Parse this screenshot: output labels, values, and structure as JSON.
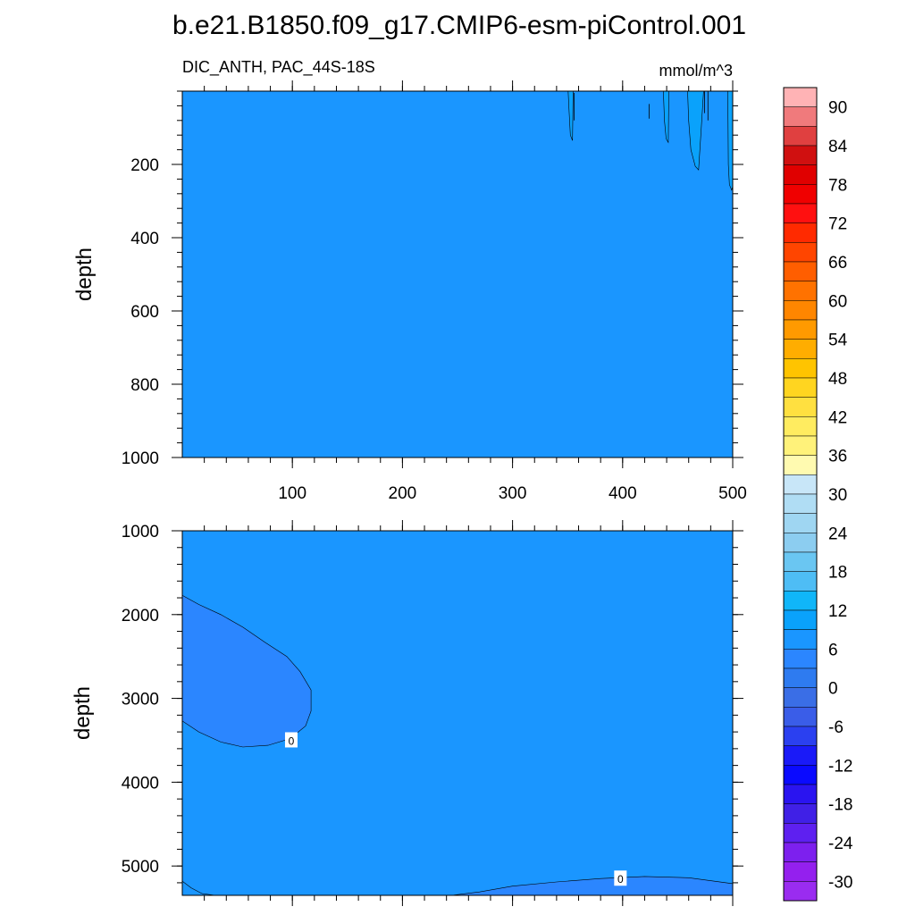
{
  "figure": {
    "title": "b.e21.B1850.f09_g17.CMIP6-esm-piControl.001",
    "variable_label": "DIC_ANTH, PAC_44S-18S",
    "units_label": "mmol/m^3"
  },
  "colors": {
    "background_fill": "#1a96ff",
    "negative_fill": "#2b86ff",
    "positive_fill": "#0aa2fb",
    "contour_line": "#000000"
  },
  "chart_data": [
    {
      "type": "heatmap",
      "panel": "upper",
      "title": "DIC_ANTH, PAC_44S-18S",
      "xlabel": "",
      "ylabel": "depth",
      "xlim": [
        0,
        500
      ],
      "ylim": [
        1000,
        0
      ],
      "y_inverted": true,
      "xticks": [
        100,
        200,
        300,
        400,
        500
      ],
      "yticks": [
        200,
        400,
        600,
        800,
        1000
      ],
      "ytick_labels": [
        "200",
        "400",
        "600",
        "800",
        "1000"
      ],
      "xtick_labels": [
        "100",
        "200",
        "300",
        "400",
        "500"
      ],
      "background_value_range": [
        0,
        3
      ],
      "features": [
        {
          "description": "thin positive plumes near surface",
          "x": [
            350,
            355
          ],
          "depth": [
            0,
            140
          ]
        },
        {
          "description": "thin positive plume",
          "x": [
            437,
            442
          ],
          "depth": [
            0,
            140
          ]
        },
        {
          "description": "positive plume",
          "x": [
            460,
            474
          ],
          "depth": [
            0,
            215
          ]
        },
        {
          "description": "positive region at right edge",
          "x": [
            495,
            500
          ],
          "depth": [
            0,
            270
          ],
          "value_range": [
            3,
            6
          ]
        }
      ]
    },
    {
      "type": "heatmap",
      "panel": "lower",
      "title": "",
      "xlabel": "",
      "ylabel": "depth",
      "xlim": [
        0,
        500
      ],
      "ylim": [
        5350,
        1000
      ],
      "y_inverted": true,
      "xticks": [
        100,
        200,
        300,
        400,
        500
      ],
      "yticks": [
        1000,
        2000,
        3000,
        4000,
        5000
      ],
      "ytick_labels": [
        "1000",
        "2000",
        "3000",
        "4000",
        "5000"
      ],
      "background_value_range": [
        0,
        3
      ],
      "contour_labels": [
        "0",
        "0"
      ],
      "features": [
        {
          "description": "negative lobe (0 contour) west side",
          "x": [
            0,
            118
          ],
          "depth": [
            1770,
            3580
          ],
          "value_range": [
            -3,
            0
          ]
        },
        {
          "description": "negative region near bottom (0 contour)",
          "x": [
            245,
            500
          ],
          "depth": [
            5120,
            5350
          ],
          "value_range": [
            -3,
            0
          ]
        }
      ]
    }
  ],
  "colorbar": {
    "labels": [
      "90",
      "84",
      "78",
      "72",
      "66",
      "60",
      "54",
      "48",
      "42",
      "36",
      "30",
      "24",
      "18",
      "12",
      "6",
      "0",
      "-6",
      "-12",
      "-18",
      "-24",
      "-30"
    ],
    "levels_min": -33,
    "levels_max": 93,
    "level_step": 3,
    "colors_top_to_bottom": [
      "#ffb3b5",
      "#f07a7c",
      "#e04040",
      "#d01010",
      "#e00000",
      "#f00000",
      "#ff1010",
      "#ff2a00",
      "#ff4500",
      "#ff5e00",
      "#ff7200",
      "#ff8600",
      "#ff9a00",
      "#ffad00",
      "#ffc400",
      "#ffd520",
      "#ffe040",
      "#ffec60",
      "#fff27a",
      "#fffab0",
      "#c8e6f8",
      "#b0ddf4",
      "#9fd6f2",
      "#8ccdf0",
      "#6ac6f2",
      "#4ebdf5",
      "#10b6f9",
      "#0aa2fb",
      "#1a96ff",
      "#2b86ff",
      "#2e7bf0",
      "#3a6ee6",
      "#3a5de8",
      "#2b40f0",
      "#1a1af8",
      "#0a0aff",
      "#2a14f0",
      "#4020e6",
      "#5e20f0",
      "#7d20ee",
      "#9420ee",
      "#9a2cf0"
    ]
  }
}
